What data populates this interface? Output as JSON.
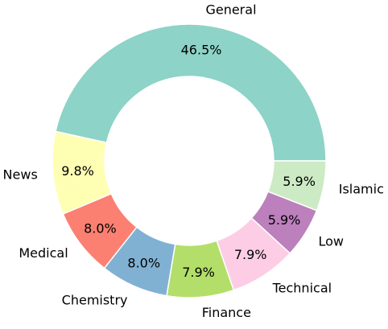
{
  "chart_data": {
    "type": "pie",
    "style": "donut",
    "categories": [
      "General",
      "News",
      "Medical",
      "Chemistry",
      "Finance",
      "Technical",
      "Low",
      "Islamic"
    ],
    "values": [
      46.5,
      9.8,
      8.0,
      8.0,
      7.9,
      7.9,
      5.9,
      5.9
    ],
    "value_labels": [
      "46.5%",
      "9.8%",
      "8.0%",
      "8.0%",
      "7.9%",
      "7.9%",
      "5.9%",
      "5.9%"
    ],
    "colors": [
      "#8dd3c7",
      "#ffffb3",
      "#fb8072",
      "#80b1d3",
      "#b3de69",
      "#fccde5",
      "#bc80bd",
      "#ccebc5"
    ],
    "start_angle_deg": 0,
    "direction": "counterclockwise",
    "legend": "none"
  }
}
